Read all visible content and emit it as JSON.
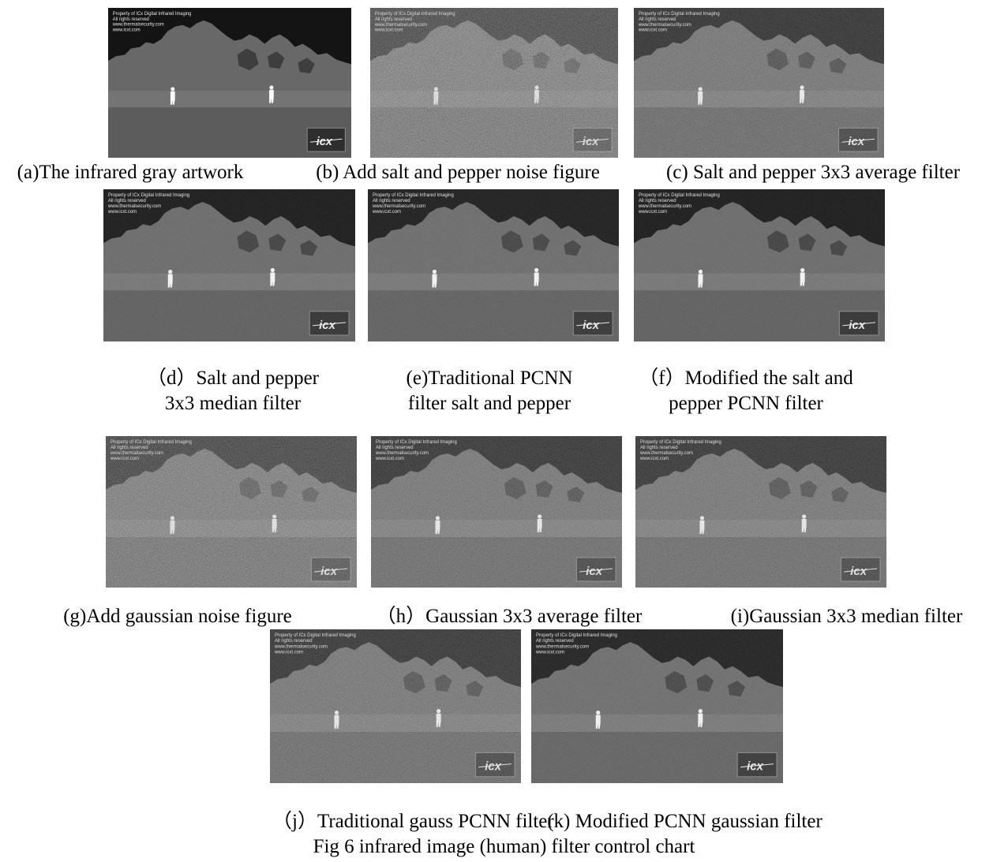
{
  "watermark": {
    "lines": [
      "Property of ICx Digital Infrared Imaging",
      "All rights reserved",
      "www.thermalsecurity.com",
      "www.icxt.com"
    ],
    "logo": "icx"
  },
  "panels": [
    {
      "caption": [
        "(a)The infrared gray artwork"
      ]
    },
    {
      "caption": [
        "(b) Add salt and pepper noise figure"
      ]
    },
    {
      "caption": [
        "(c) Salt and pepper 3x3 average filter"
      ]
    },
    {
      "caption": [
        "（d）Salt and pepper",
        "3x3 median filter"
      ]
    },
    {
      "caption": [
        "(e)Traditional PCNN",
        "filter salt and pepper"
      ]
    },
    {
      "caption": [
        "（f）Modified the salt and",
        "pepper PCNN filter"
      ]
    },
    {
      "caption": [
        "(g)Add gaussian noise figure"
      ]
    },
    {
      "caption": [
        "（h）Gaussian 3x3 average filter"
      ]
    },
    {
      "caption": [
        "(i)Gaussian 3x3 median filter"
      ]
    },
    {
      "caption": [
        "（j）Traditional gauss PCNN filter"
      ]
    },
    {
      "caption": [
        "(k) Modified PCNN gaussian filter"
      ]
    }
  ],
  "figure_caption": "Fig 6 infrared image (human) filter control chart"
}
